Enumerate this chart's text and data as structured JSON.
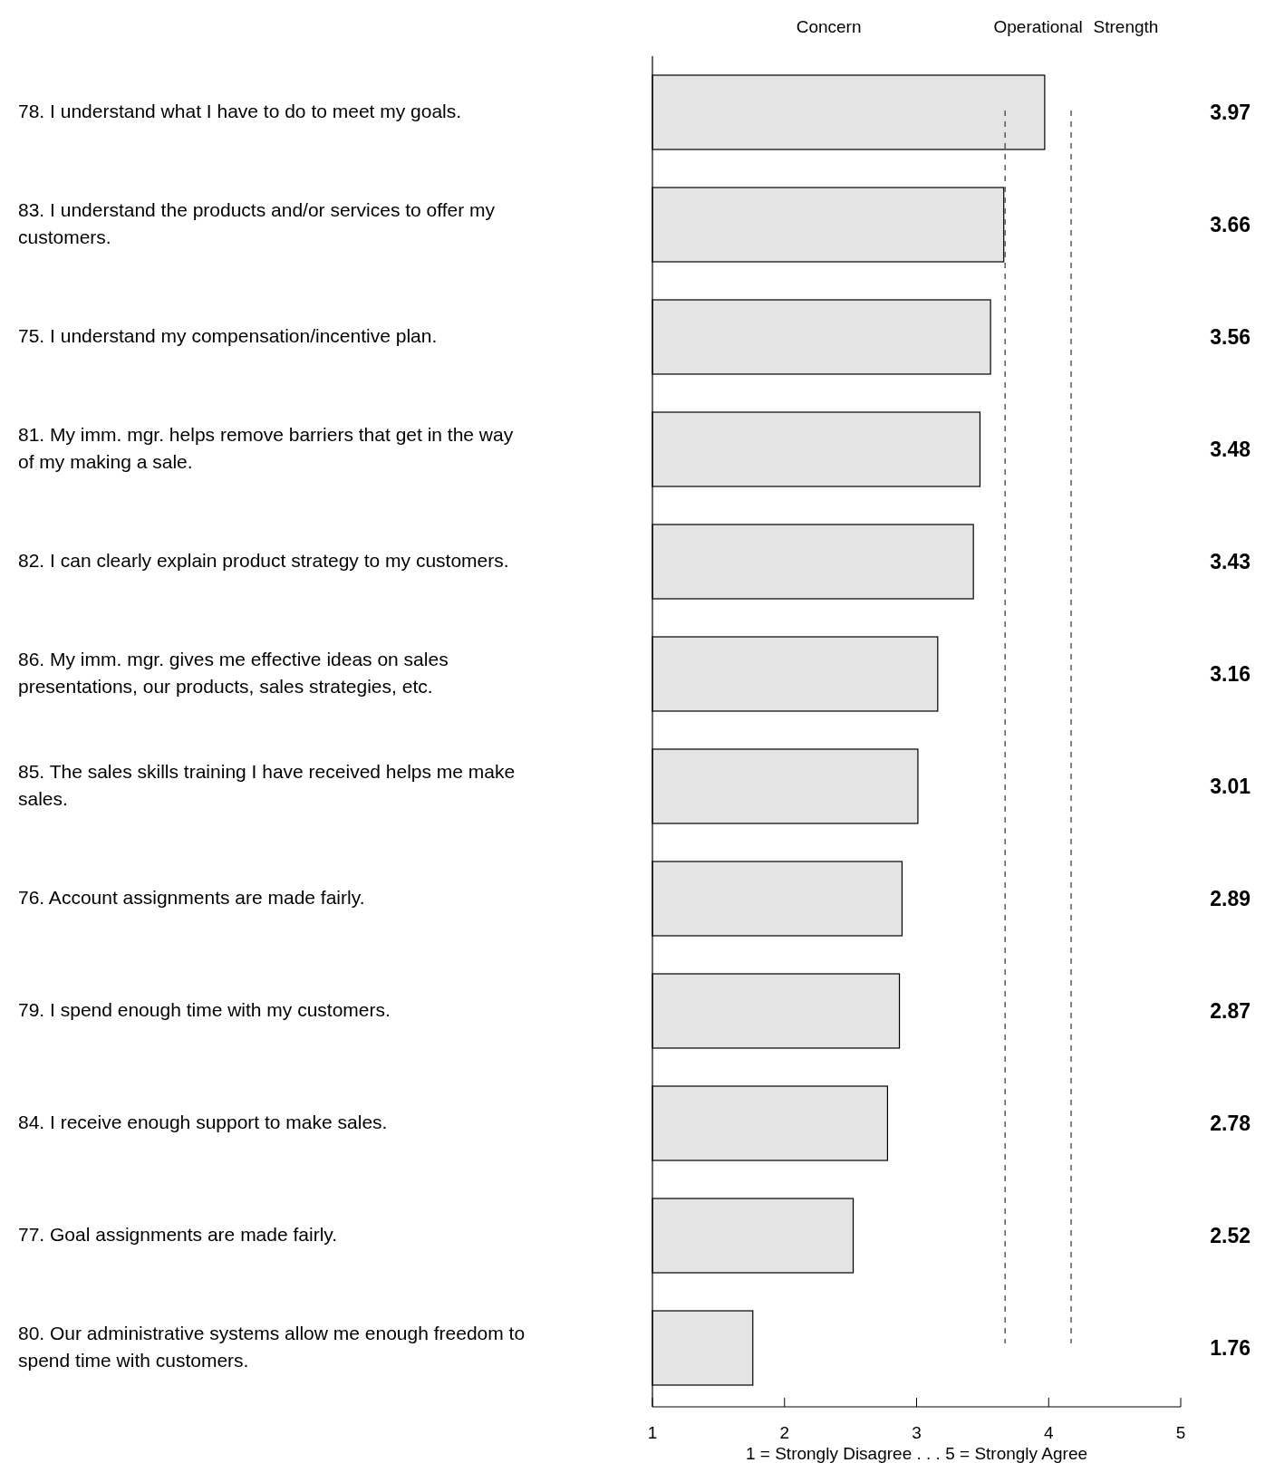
{
  "chart_data": {
    "type": "bar",
    "orientation": "horizontal",
    "xlabel": "1 = Strongly Disagree . . . 5 = Strongly Agree",
    "categories": [
      "78.  I understand what I have to do to meet my goals.",
      "83.  I understand the products and/or services to offer my customers.",
      "75.  I understand my compensation/incentive plan.",
      "81.  My imm. mgr. helps remove barriers that get in the way of my making a sale.",
      "82.  I can clearly explain product strategy to my customers.",
      "86.  My imm. mgr. gives me effective ideas on sales presentations, our products, sales strategies, etc.",
      "85.  The sales skills training I have received helps me make sales.",
      "76.  Account assignments are made fairly.",
      "79.  I spend enough time with my customers.",
      "84.  I receive enough support to make sales.",
      "77.  Goal assignments are made fairly.",
      "80.  Our administrative systems allow me enough freedom to spend time with customers."
    ],
    "values": [
      3.97,
      3.66,
      3.56,
      3.48,
      3.43,
      3.16,
      3.01,
      2.89,
      2.87,
      2.78,
      2.52,
      1.76
    ],
    "color": "#e4e4e4",
    "data_labels": true,
    "xlim": [
      1,
      5
    ],
    "xticks": [
      1,
      2,
      3,
      4,
      5
    ],
    "ref_lines": [
      {
        "axis": "x",
        "value": 3.67,
        "line_style": "dashed"
      },
      {
        "axis": "x",
        "value": 4.17,
        "line_style": "dashed"
      }
    ],
    "annotations": [
      "Concern",
      "Operational",
      "Strength"
    ]
  }
}
